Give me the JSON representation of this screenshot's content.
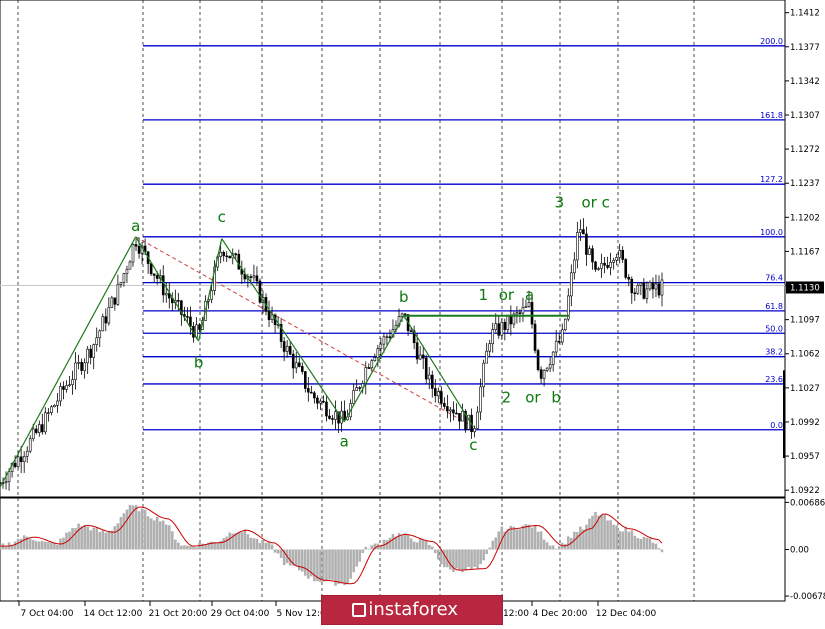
{
  "chart_data": [
    {
      "type": "candlestick",
      "title": "",
      "price_ticks": [
        "1.1412",
        "1.1377",
        "1.1342",
        "1.1307",
        "1.1272",
        "1.1237",
        "1.1202",
        "1.1167",
        "1.1132",
        "1.1097",
        "1.1062",
        "1.1027",
        "1.0992",
        "1.0957",
        "1.0922"
      ],
      "ylim": [
        1.0915,
        1.1425
      ],
      "current_price": "1.1130",
      "time_ticks": [
        "7 Oct 04:00",
        "14 Oct 12:00",
        "21 Oct 20:00",
        "29 Oct 04:00",
        "5 Nov 12:00",
        "12:00",
        "4 Dec 20:00",
        "12 Dec 04:00"
      ],
      "grid": true,
      "fibonacci_levels": [
        {
          "label": "200.0",
          "price": 1.1378
        },
        {
          "label": "161.8",
          "price": 1.1302
        },
        {
          "label": "127.2",
          "price": 1.1236
        },
        {
          "label": "100.0",
          "price": 1.1182
        },
        {
          "label": "76.4",
          "price": 1.1135
        },
        {
          "label": "61.8",
          "price": 1.1106
        },
        {
          "label": "50.0",
          "price": 1.1083
        },
        {
          "label": "38.2",
          "price": 1.1059
        },
        {
          "label": "23.6",
          "price": 1.1031
        },
        {
          "label": "0.0",
          "price": 0.0
        }
      ],
      "fib_zero_price": 1.0984,
      "wave_labels": [
        {
          "text": "a",
          "price": 1.1188,
          "bar": 0.205
        },
        {
          "text": "c",
          "price": 1.1197,
          "bar": 0.335
        },
        {
          "text": "b",
          "price": 1.1048,
          "bar": 0.3
        },
        {
          "text": "a",
          "price": 1.0967,
          "bar": 0.52
        },
        {
          "text": "b",
          "price": 1.1115,
          "bar": 0.61
        },
        {
          "text": "c",
          "price": 1.0963,
          "bar": 0.715
        },
        {
          "text": "1",
          "price": 1.1117,
          "bar": 0.73
        },
        {
          "text": "or",
          "price": 1.1117,
          "bar": 0.765
        },
        {
          "text": "a",
          "price": 1.1117,
          "bar": 0.8
        },
        {
          "text": "2",
          "price": 1.1012,
          "bar": 0.765
        },
        {
          "text": "or",
          "price": 1.1012,
          "bar": 0.805
        },
        {
          "text": "b",
          "price": 1.1012,
          "bar": 0.84
        },
        {
          "text": "3",
          "price": 1.1212,
          "bar": 0.845
        },
        {
          "text": "or",
          "price": 1.1212,
          "bar": 0.89
        },
        {
          "text": "c",
          "price": 1.1212,
          "bar": 0.915
        }
      ],
      "key_points": [
        {
          "t": 0.0,
          "price": 1.093
        },
        {
          "t": 0.06,
          "price": 1.0985
        },
        {
          "t": 0.1,
          "price": 1.103
        },
        {
          "t": 0.14,
          "price": 1.107
        },
        {
          "t": 0.18,
          "price": 1.113
        },
        {
          "t": 0.205,
          "price": 1.118
        },
        {
          "t": 0.25,
          "price": 1.1125
        },
        {
          "t": 0.3,
          "price": 1.108
        },
        {
          "t": 0.335,
          "price": 1.1172
        },
        {
          "t": 0.38,
          "price": 1.114
        },
        {
          "t": 0.43,
          "price": 1.107
        },
        {
          "t": 0.47,
          "price": 1.102
        },
        {
          "t": 0.52,
          "price": 1.0992
        },
        {
          "t": 0.56,
          "price": 1.106
        },
        {
          "t": 0.61,
          "price": 1.1101
        },
        {
          "t": 0.65,
          "price": 1.103
        },
        {
          "t": 0.715,
          "price": 1.0985
        },
        {
          "t": 0.74,
          "price": 1.108
        },
        {
          "t": 0.78,
          "price": 1.11
        },
        {
          "t": 0.8,
          "price": 1.111
        },
        {
          "t": 0.815,
          "price": 1.104
        },
        {
          "t": 0.85,
          "price": 1.108
        },
        {
          "t": 0.875,
          "price": 1.1195
        },
        {
          "t": 0.9,
          "price": 1.114
        },
        {
          "t": 0.93,
          "price": 1.117
        },
        {
          "t": 0.96,
          "price": 1.1125
        },
        {
          "t": 1.0,
          "price": 1.113
        }
      ],
      "wave_lines": [
        {
          "from": [
            0.0,
            1.0925
          ],
          "to": [
            0.205,
            1.1182
          ]
        },
        {
          "from": [
            0.205,
            1.1182
          ],
          "to": [
            0.3,
            1.1075
          ]
        },
        {
          "from": [
            0.3,
            1.1075
          ],
          "to": [
            0.335,
            1.118
          ]
        },
        {
          "from": [
            0.335,
            1.118
          ],
          "to": [
            0.52,
            1.0992
          ]
        },
        {
          "from": [
            0.52,
            1.0992
          ],
          "to": [
            0.61,
            1.1101
          ]
        },
        {
          "from": [
            0.61,
            1.1101
          ],
          "to": [
            0.715,
            1.0987
          ]
        }
      ],
      "dashed_line": {
        "from": [
          0.205,
          1.1182
        ],
        "to": [
          0.715,
          1.0987
        ],
        "color": "#d04040"
      },
      "horizontal_line": {
        "from": 0.61,
        "to": 0.86,
        "price": 1.1101
      }
    },
    {
      "type": "line",
      "title": "",
      "series": [
        {
          "name": "",
          "color": "#cc0000"
        }
      ],
      "histogram_color": "#b0b0b0",
      "y_ticks": [
        "0.00686",
        "0.00",
        "-0.00678"
      ],
      "ylim": [
        -0.0075,
        0.0075
      ],
      "key_points": [
        {
          "t": 0.0,
          "v": 0.0005
        },
        {
          "t": 0.04,
          "v": 0.0018
        },
        {
          "t": 0.08,
          "v": 0.0008
        },
        {
          "t": 0.12,
          "v": 0.0035
        },
        {
          "t": 0.16,
          "v": 0.0025
        },
        {
          "t": 0.2,
          "v": 0.0062
        },
        {
          "t": 0.24,
          "v": 0.0045
        },
        {
          "t": 0.28,
          "v": 0.0005
        },
        {
          "t": 0.32,
          "v": 0.001
        },
        {
          "t": 0.36,
          "v": 0.0028
        },
        {
          "t": 0.4,
          "v": 0.001
        },
        {
          "t": 0.44,
          "v": -0.0025
        },
        {
          "t": 0.48,
          "v": -0.0045
        },
        {
          "t": 0.52,
          "v": -0.005
        },
        {
          "t": 0.56,
          "v": 0.0005
        },
        {
          "t": 0.6,
          "v": 0.0022
        },
        {
          "t": 0.64,
          "v": 0.0012
        },
        {
          "t": 0.68,
          "v": -0.003
        },
        {
          "t": 0.72,
          "v": -0.0028
        },
        {
          "t": 0.76,
          "v": 0.003
        },
        {
          "t": 0.8,
          "v": 0.0035
        },
        {
          "t": 0.84,
          "v": 0.0005
        },
        {
          "t": 0.88,
          "v": 0.003
        },
        {
          "t": 0.9,
          "v": 0.0052
        },
        {
          "t": 0.94,
          "v": 0.003
        },
        {
          "t": 0.98,
          "v": 0.0015
        },
        {
          "t": 1.0,
          "v": -0.0002
        }
      ]
    }
  ],
  "watermark": "instaforex"
}
